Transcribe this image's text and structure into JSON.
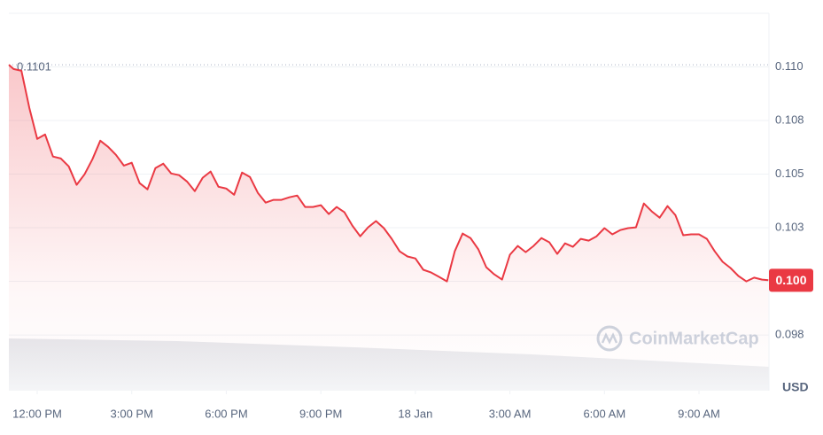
{
  "chart_data": {
    "type": "line",
    "color": "#ea3943",
    "grid": true,
    "unit_label": "USD",
    "watermark": "CoinMarketCap",
    "reference_line": {
      "value": 0.1101,
      "label": "0.1101"
    },
    "last_label": "0.100",
    "xlim": [
      -0.9,
      23.22
    ],
    "ylim": [
      0.0949,
      0.1125
    ],
    "xticks": [
      {
        "value": 0,
        "label": "12:00 PM"
      },
      {
        "value": 3,
        "label": "3:00 PM"
      },
      {
        "value": 6,
        "label": "6:00 PM"
      },
      {
        "value": 9,
        "label": "9:00 PM"
      },
      {
        "value": 12,
        "label": "18 Jan"
      },
      {
        "value": 15,
        "label": "3:00 AM"
      },
      {
        "value": 18,
        "label": "6:00 AM"
      },
      {
        "value": 21,
        "label": "9:00 AM"
      }
    ],
    "yticks": [
      {
        "value": 0.0975,
        "label": "0.098"
      },
      {
        "value": 0.1,
        "label": "0.100"
      },
      {
        "value": 0.1025,
        "label": "0.103"
      },
      {
        "value": 0.105,
        "label": "0.105"
      },
      {
        "value": 0.1075,
        "label": "0.108"
      },
      {
        "value": 0.11,
        "label": "0.110"
      }
    ],
    "x": [
      -0.9,
      -0.75,
      -0.5,
      -0.25,
      0,
      0.25,
      0.5,
      0.75,
      1,
      1.25,
      1.5,
      1.75,
      2,
      2.25,
      2.5,
      2.75,
      3,
      3.25,
      3.5,
      3.75,
      4,
      4.25,
      4.5,
      4.75,
      5,
      5.25,
      5.5,
      5.75,
      6,
      6.25,
      6.5,
      6.75,
      7,
      7.25,
      7.5,
      7.75,
      8,
      8.25,
      8.5,
      8.75,
      9,
      9.25,
      9.5,
      9.75,
      10,
      10.25,
      10.5,
      10.75,
      11,
      11.25,
      11.5,
      11.75,
      12,
      12.25,
      12.5,
      12.75,
      13,
      13.25,
      13.5,
      13.75,
      14,
      14.25,
      14.5,
      14.75,
      15,
      15.25,
      15.5,
      15.75,
      16,
      16.25,
      16.5,
      16.75,
      17,
      17.25,
      17.5,
      17.75,
      18,
      18.25,
      18.5,
      18.75,
      19,
      19.25,
      19.5,
      19.75,
      20,
      20.25,
      20.5,
      20.75,
      21,
      21.25,
      21.5,
      21.75,
      22,
      22.25,
      22.5,
      22.75,
      23,
      23.2
    ],
    "values": [
      0.1101,
      0.1099,
      0.10982,
      0.10809,
      0.10664,
      0.10685,
      0.10582,
      0.10573,
      0.10536,
      0.1045,
      0.10499,
      0.10569,
      0.10656,
      0.10627,
      0.1059,
      0.1054,
      0.10553,
      0.10458,
      0.10429,
      0.10528,
      0.10549,
      0.10503,
      0.10495,
      0.10466,
      0.10421,
      0.10483,
      0.10512,
      0.10441,
      0.10433,
      0.10404,
      0.10507,
      0.10487,
      0.10413,
      0.10367,
      0.1038,
      0.1038,
      0.10392,
      0.104,
      0.10347,
      0.10347,
      0.10355,
      0.10314,
      0.10347,
      0.10322,
      0.1026,
      0.1021,
      0.10252,
      0.10281,
      0.10248,
      0.10198,
      0.1014,
      0.10116,
      0.10107,
      0.10054,
      0.10041,
      0.10021,
      0.1,
      0.1014,
      0.10223,
      0.10202,
      0.10149,
      0.10066,
      0.10033,
      0.10008,
      0.10124,
      0.10165,
      0.10136,
      0.10165,
      0.10202,
      0.10182,
      0.10128,
      0.10177,
      0.10161,
      0.10198,
      0.1019,
      0.1021,
      0.10248,
      0.10219,
      0.10239,
      0.10248,
      0.10252,
      0.10363,
      0.10326,
      0.10297,
      0.10351,
      0.10309,
      0.10215,
      0.10219,
      0.10219,
      0.10198,
      0.1014,
      0.10091,
      0.10062,
      0.10025,
      0.1,
      0.10017,
      0.10008,
      0.10005
    ]
  }
}
